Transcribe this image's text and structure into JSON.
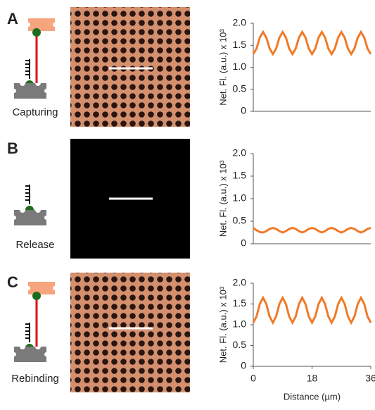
{
  "panels": [
    {
      "letter": "A",
      "label": "Capturing"
    },
    {
      "letter": "B",
      "label": "Release"
    },
    {
      "letter": "C",
      "label": "Rebinding"
    }
  ],
  "chart_data": [
    {
      "type": "line",
      "y_label": "Net. Fl. (a.u.) x 10³",
      "xlim": [
        0,
        36
      ],
      "ylim": [
        0,
        2
      ],
      "yticks": [
        0,
        0.5,
        {
          "value": 1,
          "label": "1.0"
        },
        1.5,
        {
          "value": 2,
          "label": "2.0"
        }
      ],
      "x": [
        0,
        1,
        2,
        3,
        4,
        5,
        6,
        7,
        8,
        9,
        10,
        11,
        12,
        13,
        14,
        15,
        16,
        17,
        18,
        19,
        20,
        21,
        22,
        23,
        24,
        25,
        26,
        27,
        28,
        29,
        30,
        31,
        32,
        33,
        34,
        35,
        36
      ],
      "series": [
        {
          "color": "#f07a28",
          "values": [
            1.3,
            1.425,
            1.675,
            1.8,
            1.675,
            1.425,
            1.3,
            1.425,
            1.675,
            1.8,
            1.675,
            1.425,
            1.3,
            1.425,
            1.675,
            1.8,
            1.675,
            1.425,
            1.3,
            1.425,
            1.675,
            1.8,
            1.675,
            1.425,
            1.3,
            1.425,
            1.675,
            1.8,
            1.675,
            1.425,
            1.3,
            1.425,
            1.675,
            1.8,
            1.675,
            1.425,
            1.3
          ]
        }
      ]
    },
    {
      "type": "line",
      "y_label": "Net. Fl. (a.u.) x 10³",
      "xlim": [
        0,
        36
      ],
      "ylim": [
        0,
        2
      ],
      "yticks": [
        0,
        0.5,
        {
          "value": 1,
          "label": "1.0"
        },
        1.5,
        {
          "value": 2,
          "label": "2.0"
        }
      ],
      "x": [
        0,
        1,
        2,
        3,
        4,
        5,
        6,
        7,
        8,
        9,
        10,
        11,
        12,
        13,
        14,
        15,
        16,
        17,
        18,
        19,
        20,
        21,
        22,
        23,
        24,
        25,
        26,
        27,
        28,
        29,
        30,
        31,
        32,
        33,
        34,
        35,
        36
      ],
      "series": [
        {
          "color": "#f07a28",
          "values": [
            0.35,
            0.3,
            0.26,
            0.25,
            0.28,
            0.33,
            0.35,
            0.33,
            0.28,
            0.25,
            0.28,
            0.33,
            0.35,
            0.33,
            0.28,
            0.25,
            0.28,
            0.33,
            0.35,
            0.33,
            0.28,
            0.25,
            0.28,
            0.33,
            0.35,
            0.33,
            0.28,
            0.25,
            0.28,
            0.33,
            0.35,
            0.33,
            0.28,
            0.25,
            0.28,
            0.33,
            0.35
          ]
        }
      ]
    },
    {
      "type": "line",
      "y_label": "Net. Fl. (a.u.) x 10³",
      "x_label": "Distance (µm)",
      "xlim": [
        0,
        36
      ],
      "ylim": [
        0,
        2
      ],
      "xticks": [
        0,
        18,
        36
      ],
      "yticks": [
        0,
        0.5,
        {
          "value": 1,
          "label": "1.0"
        },
        1.5,
        {
          "value": 2,
          "label": "2.0"
        }
      ],
      "x": [
        0,
        1,
        2,
        3,
        4,
        5,
        6,
        7,
        8,
        9,
        10,
        11,
        12,
        13,
        14,
        15,
        16,
        17,
        18,
        19,
        20,
        21,
        22,
        23,
        24,
        25,
        26,
        27,
        28,
        29,
        30,
        31,
        32,
        33,
        34,
        35,
        36
      ],
      "series": [
        {
          "color": "#f07a28",
          "values": [
            1.05,
            1.2,
            1.5,
            1.65,
            1.5,
            1.2,
            1.05,
            1.2,
            1.5,
            1.65,
            1.5,
            1.2,
            1.05,
            1.2,
            1.5,
            1.65,
            1.5,
            1.2,
            1.05,
            1.2,
            1.5,
            1.65,
            1.5,
            1.2,
            1.05,
            1.2,
            1.5,
            1.65,
            1.5,
            1.2,
            1.05,
            1.2,
            1.5,
            1.65,
            1.5,
            1.2,
            1.05
          ]
        }
      ]
    }
  ]
}
